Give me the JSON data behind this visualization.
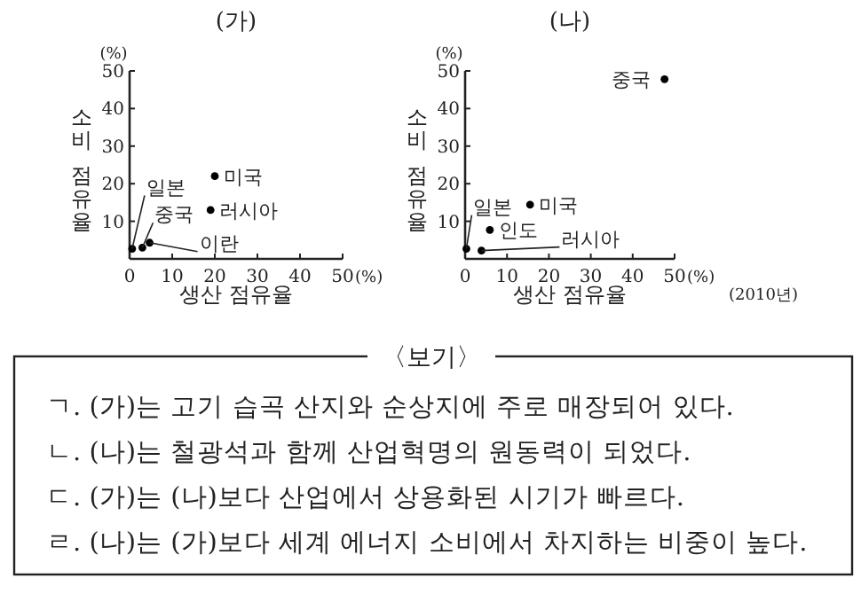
{
  "chart_data": [
    {
      "type": "scatter",
      "title": "(가)",
      "xlabel": "생산 점유율",
      "ylabel": "소비 점유율",
      "xlim": [
        0,
        50
      ],
      "ylim": [
        0,
        50
      ],
      "xticks": [
        0,
        10,
        20,
        30,
        40,
        50
      ],
      "yticks": [
        10,
        20,
        30,
        40,
        50
      ],
      "marker": "circle",
      "annotations": [
        "(%)",
        "(%)"
      ],
      "series": [
        {
          "name": "미국",
          "color": "#000000",
          "x": [
            20
          ],
          "values": [
            22
          ]
        },
        {
          "name": "러시아",
          "color": "#000000",
          "x": [
            19
          ],
          "values": [
            13
          ]
        },
        {
          "name": "일본",
          "color": "#000000",
          "x": [
            0.6
          ],
          "values": [
            2.7
          ]
        },
        {
          "name": "중국",
          "color": "#000000",
          "x": [
            3
          ],
          "values": [
            3
          ]
        },
        {
          "name": "이란",
          "color": "#000000",
          "x": [
            4.7
          ],
          "values": [
            4.3
          ]
        }
      ]
    },
    {
      "type": "scatter",
      "title": "(나)",
      "xlabel": "생산 점유율",
      "ylabel": "소비 점유율",
      "xlim": [
        0,
        50
      ],
      "ylim": [
        0,
        50
      ],
      "xticks": [
        0,
        10,
        20,
        30,
        40,
        50
      ],
      "yticks": [
        10,
        20,
        30,
        40,
        50
      ],
      "marker": "circle",
      "annotations": [
        "(%)",
        "(%)",
        "(2010년)"
      ],
      "series": [
        {
          "name": "중국",
          "color": "#000000",
          "x": [
            47.6
          ],
          "values": [
            47.8
          ]
        },
        {
          "name": "미국",
          "color": "#000000",
          "x": [
            15.5
          ],
          "values": [
            14.4
          ]
        },
        {
          "name": "인도",
          "color": "#000000",
          "x": [
            5.9
          ],
          "values": [
            7.7
          ]
        },
        {
          "name": "일본",
          "color": "#000000",
          "x": [
            0.3
          ],
          "values": [
            2.7
          ]
        },
        {
          "name": "러시아",
          "color": "#000000",
          "x": [
            3.9
          ],
          "values": [
            2.2
          ]
        }
      ]
    },
    {
      "type": "other",
      "title": "〈보기〉",
      "annotations": [
        "ㄱ. (가)는 고기 습곡 산지와 순상지에 주로 매장되어 있다.",
        "ㄴ. (나)는 철광석과 함께 산업혁명의 원동력이 되었다.",
        "ㄷ. (가)는 (나)보다 산업에서 상용화된 시기가 빠르다.",
        "ㄹ. (나)는 (가)보다 세계 에너지 소비에서 차지하는 비중이 높다."
      ]
    }
  ]
}
